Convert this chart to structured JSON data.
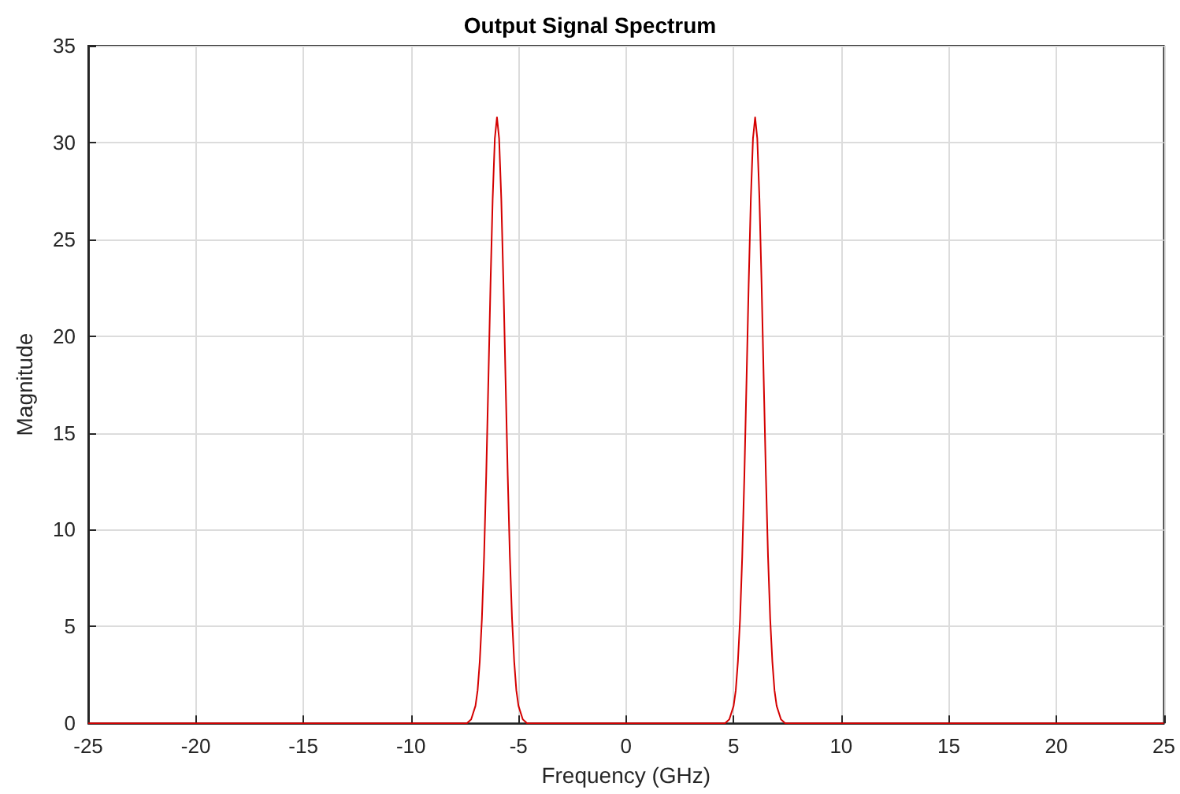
{
  "chart_data": {
    "type": "line",
    "title": "Output Signal Spectrum",
    "xlabel": "Frequency (GHz)",
    "ylabel": "Magnitude",
    "series": [
      {
        "color": "#d40000",
        "x": [
          -25,
          -7.4,
          -7.2,
          -7.0,
          -6.9,
          -6.8,
          -6.7,
          -6.6,
          -6.5,
          -6.4,
          -6.3,
          -6.2,
          -6.1,
          -6.0,
          -5.9,
          -5.8,
          -5.7,
          -5.6,
          -5.5,
          -5.4,
          -5.3,
          -5.2,
          -5.1,
          -5.0,
          -4.8,
          -4.6,
          4.6,
          4.8,
          5.0,
          5.1,
          5.2,
          5.3,
          5.4,
          5.5,
          5.6,
          5.7,
          5.8,
          5.9,
          6.0,
          6.1,
          6.2,
          6.3,
          6.4,
          6.5,
          6.6,
          6.7,
          6.8,
          6.9,
          7.0,
          7.2,
          7.4,
          25
        ],
        "values": [
          0,
          0,
          0.2,
          0.9,
          1.7,
          3.2,
          5.4,
          8.6,
          12.8,
          17.7,
          22.7,
          27.1,
          30.2,
          31.3,
          30.2,
          27.1,
          22.7,
          17.7,
          12.8,
          8.6,
          5.4,
          3.2,
          1.7,
          0.9,
          0.2,
          0,
          0,
          0.2,
          0.9,
          1.7,
          3.2,
          5.4,
          8.6,
          12.8,
          17.7,
          22.7,
          27.1,
          30.2,
          31.3,
          30.2,
          27.1,
          22.7,
          17.7,
          12.8,
          8.6,
          5.4,
          3.2,
          1.7,
          0.9,
          0.2,
          0,
          0
        ]
      }
    ],
    "xlim": [
      -25,
      25
    ],
    "xticks": [
      -25,
      -20,
      -15,
      -10,
      -5,
      0,
      5,
      10,
      15,
      20,
      25
    ],
    "ylim": [
      0,
      35
    ],
    "yticks": [
      0,
      5,
      10,
      15,
      20,
      25,
      30,
      35
    ],
    "grid": true,
    "marker": "none",
    "line_style": "solid"
  }
}
